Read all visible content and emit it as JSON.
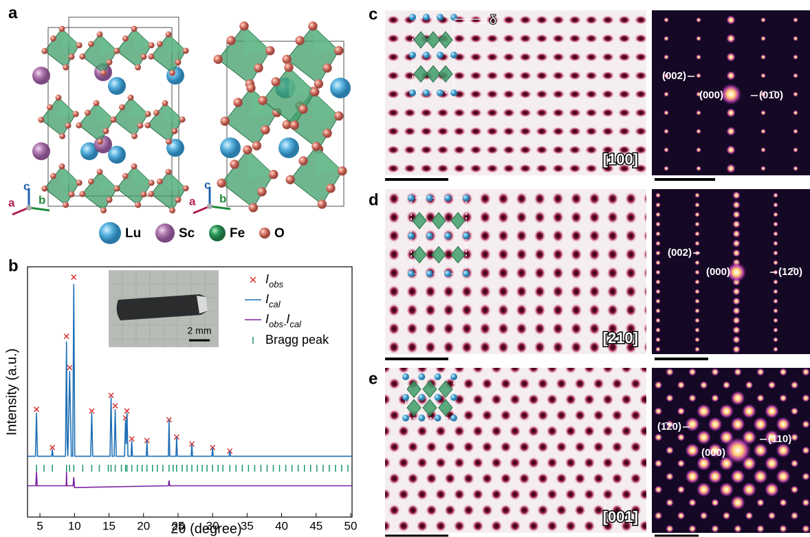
{
  "panel_labels": [
    "a",
    "b",
    "c",
    "d",
    "e"
  ],
  "structure": {
    "axes_left": [
      "c",
      "a",
      "b"
    ],
    "axes_right": [
      "c",
      "a",
      "b"
    ],
    "legend": [
      "Lu",
      "Sc",
      "Fe",
      "O"
    ]
  },
  "chart_data": {
    "type": "line",
    "x_label": "2θ (degree)",
    "y_label": "Intensity (a.u.)",
    "xlim": [
      3.2,
      50.2
    ],
    "ylim": [
      -34,
      110
    ],
    "xticks": [
      5,
      10,
      15,
      20,
      25,
      30,
      35,
      40,
      45,
      50
    ],
    "series": [
      {
        "name": "Iobs",
        "color": "#d62728",
        "marker": "x",
        "x": [
          4.5,
          6.8,
          8.85,
          9.3,
          9.9,
          12.5,
          15.3,
          15.9,
          17.4,
          17.6,
          18.3,
          20.5,
          23.7,
          24.8,
          27,
          30,
          32.5
        ],
        "values": [
          28,
          6,
          70,
          52,
          104,
          27,
          36,
          30,
          23,
          27,
          11,
          10,
          22,
          12,
          8,
          6,
          4
        ]
      },
      {
        "name": "Ical",
        "color": "#1f6fb4",
        "x": [
          3.2,
          4.35,
          4.5,
          4.65,
          6.7,
          6.8,
          6.9,
          8.7,
          8.85,
          8.95,
          9.05,
          9.3,
          9.55,
          9.75,
          9.9,
          10.05,
          12.35,
          12.5,
          12.65,
          15.15,
          15.3,
          15.45,
          15.75,
          15.9,
          16.05,
          17.25,
          17.4,
          17.5,
          17.6,
          17.75,
          18.2,
          18.3,
          18.4,
          20.4,
          20.5,
          20.6,
          23.6,
          23.7,
          23.8,
          24.7,
          24.8,
          24.9,
          26.9,
          27,
          27.1,
          29.9,
          30,
          30.1,
          32.4,
          32.5,
          32.6,
          50.2
        ],
        "values": [
          1,
          1,
          26,
          1,
          1,
          5,
          1,
          1,
          67,
          8,
          1,
          50,
          1,
          1,
          100,
          1,
          1,
          26,
          1,
          1,
          35,
          1,
          1,
          28,
          1,
          1,
          22,
          8,
          26,
          1,
          1,
          10,
          1,
          1,
          10,
          1,
          1,
          22,
          1,
          1,
          12,
          1,
          1,
          8,
          1,
          1,
          6,
          1,
          1,
          4,
          1,
          1
        ]
      },
      {
        "name": "Iobs-Ical",
        "color": "#7b1fa2",
        "x": [
          3.2,
          4.4,
          4.5,
          4.6,
          8.8,
          8.85,
          8.9,
          9.8,
          9.9,
          10.0,
          23.6,
          23.7,
          23.8,
          50.2
        ],
        "values": [
          -16,
          -16,
          -8,
          -16,
          -16,
          -8,
          -16,
          -16,
          -11,
          -17,
          -16,
          -13,
          -16,
          -16
        ]
      }
    ],
    "bragg": {
      "name": "Bragg peak",
      "color": "#14956a",
      "positions": [
        4.5,
        5.6,
        6.8,
        8.85,
        9.3,
        9.9,
        11.2,
        12.5,
        13.6,
        14.9,
        15.3,
        15.9,
        16.8,
        17.4,
        17.6,
        18.3,
        19.1,
        19.8,
        20.5,
        21.3,
        22.0,
        22.8,
        23.7,
        24.3,
        24.8,
        25.6,
        26.3,
        27.0,
        27.8,
        28.5,
        29.2,
        30.0,
        30.8,
        31.5,
        32.5,
        33.4,
        34.3,
        35.2,
        36.1,
        37.0,
        37.9,
        38.8,
        39.7,
        40.6,
        41.5,
        42.4,
        43.3,
        44.2,
        45.1,
        46.0,
        46.9,
        47.8,
        48.7,
        49.6
      ]
    },
    "inset_scale": "2 mm"
  },
  "images": [
    {
      "zone": "[100]",
      "spots": [
        "(002)",
        "(000)",
        "(01̄0)"
      ],
      "marker": "δ"
    },
    {
      "zone": "[210]",
      "spots": [
        "(002)",
        "(000)",
        "(12̄0)"
      ]
    },
    {
      "zone": "[001]",
      "spots": [
        "(1̄20)",
        "(000)",
        "(110)"
      ]
    }
  ]
}
